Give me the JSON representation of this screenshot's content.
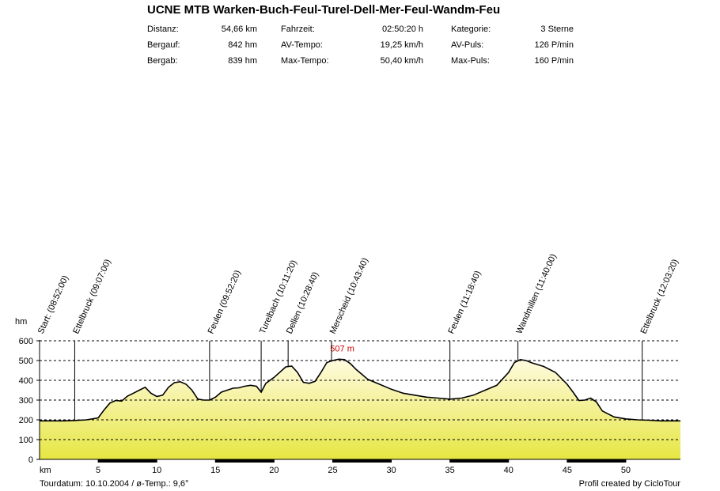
{
  "title": "UCNE MTB Warken-Buch-Feul-Turel-Dell-Mer-Feul-Wandm-Feu",
  "stats": [
    {
      "label": "Distanz:",
      "value": "54,66 km"
    },
    {
      "label": "Fahrzeit:",
      "value": "02:50:20 h"
    },
    {
      "label": "Kategorie:",
      "value": "3 Sterne"
    },
    {
      "label": "Bergauf:",
      "value": "842 hm"
    },
    {
      "label": "AV-Tempo:",
      "value": "19,25 km/h"
    },
    {
      "label": "AV-Puls:",
      "value": "126 P/min"
    },
    {
      "label": "Bergab:",
      "value": "839 hm"
    },
    {
      "label": "Max-Tempo:",
      "value": "50,40 km/h"
    },
    {
      "label": "Max-Puls:",
      "value": "160 P/min"
    }
  ],
  "footer": {
    "left": "Tourdatum: 10.10.2004  /  ø-Temp.: 9,6°",
    "right": "Profil created by CicloTour"
  },
  "chart_data": {
    "type": "area",
    "xlabel": "km",
    "ylabel": "hm",
    "xlim": [
      0,
      54.66
    ],
    "ylim": [
      0,
      600
    ],
    "xticks": [
      5,
      10,
      15,
      20,
      25,
      30,
      35,
      40,
      45,
      50
    ],
    "yticks": [
      0,
      100,
      200,
      300,
      400,
      500,
      600
    ],
    "grid": "horizontal dashed",
    "max_label": {
      "text": "507 m",
      "x": 26,
      "y": 507
    },
    "colors": {
      "fill_top": "#fffbe0",
      "fill_bottom": "#e6e642",
      "line": "#000000",
      "max_label": "#cc0000"
    },
    "waypoints": [
      {
        "label": "Start: (08:52:00)",
        "x": 0
      },
      {
        "label": "Ettelbruck (09:07:00)",
        "x": 3.0
      },
      {
        "label": "Feulen (09:52:20)",
        "x": 14.5
      },
      {
        "label": "Turelbach (10:11:20)",
        "x": 18.9
      },
      {
        "label": "Dellen (10:28:40)",
        "x": 21.2
      },
      {
        "label": "Merscheid (10:43:40)",
        "x": 24.9
      },
      {
        "label": "Feulen (11:18:40)",
        "x": 35.0
      },
      {
        "label": "Wandmillen (11:40:00)",
        "x": 40.8
      },
      {
        "label": "Ettelbruck (12:03:20)",
        "x": 51.4
      }
    ],
    "series": [
      {
        "x": [
          0,
          1,
          2,
          3,
          4,
          5,
          5.5,
          6,
          6.5,
          7,
          7.5,
          8,
          8.5,
          9,
          9.5,
          10,
          10.5,
          11,
          11.5,
          12,
          12.5,
          13,
          13.5,
          14,
          14.5,
          15,
          15.5,
          16,
          16.5,
          17,
          17.5,
          18,
          18.5,
          18.9,
          19.3,
          20,
          21,
          21.5,
          22,
          22.5,
          23,
          23.5,
          24,
          24.5,
          25,
          25.5,
          26,
          26.5,
          27,
          27.5,
          28,
          29,
          30,
          31,
          32,
          33,
          34,
          35,
          36,
          37,
          38,
          39,
          40,
          40.5,
          41,
          41.5,
          42,
          43,
          44,
          45,
          45.5,
          46,
          46.5,
          47,
          47.5,
          48,
          49,
          50,
          51,
          52,
          53,
          54,
          54.66
        ],
        "y": [
          195,
          195,
          195,
          197,
          200,
          210,
          250,
          285,
          298,
          295,
          320,
          335,
          350,
          365,
          335,
          318,
          325,
          365,
          388,
          393,
          380,
          350,
          305,
          300,
          300,
          315,
          340,
          350,
          360,
          362,
          370,
          375,
          370,
          340,
          385,
          415,
          468,
          472,
          440,
          390,
          385,
          395,
          440,
          490,
          500,
          507,
          505,
          485,
          455,
          430,
          405,
          380,
          355,
          335,
          325,
          315,
          310,
          305,
          310,
          325,
          350,
          375,
          440,
          490,
          505,
          500,
          488,
          470,
          440,
          380,
          340,
          298,
          300,
          310,
          290,
          245,
          215,
          205,
          200,
          198,
          195,
          195,
          195
        ]
      }
    ]
  }
}
